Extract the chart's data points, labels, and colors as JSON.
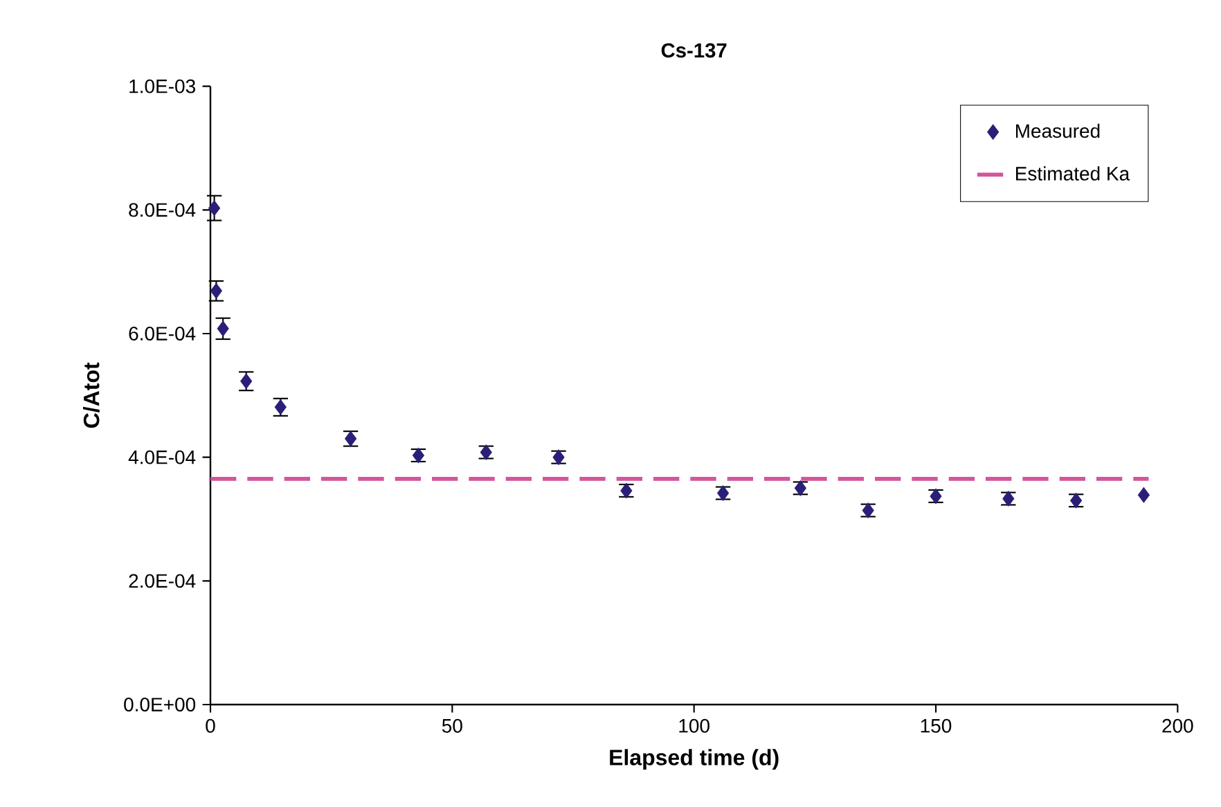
{
  "chart_data": {
    "type": "scatter",
    "title": "Cs-137",
    "xlabel": "Elapsed time (d)",
    "ylabel": "C/Atot",
    "xlim": [
      0,
      200
    ],
    "xticks": [
      0,
      50,
      100,
      150,
      200
    ],
    "ylim": [
      0,
      0.001
    ],
    "yticks": [
      {
        "value": 0,
        "label": "0.0E+00"
      },
      {
        "value": 0.0002,
        "label": "2.0E-04"
      },
      {
        "value": 0.0004,
        "label": "4.0E-04"
      },
      {
        "value": 0.0006,
        "label": "6.0E-04"
      },
      {
        "value": 0.0008,
        "label": "8.0E-04"
      },
      {
        "value": 0.001,
        "label": "1.0E-03"
      }
    ],
    "legend": "top right",
    "grid": false,
    "series": [
      {
        "name": "Measured",
        "marker": "diamond",
        "color": "#2a1f78",
        "x": [
          0.8,
          1.2,
          2.6,
          7.4,
          14.5,
          29,
          43,
          57,
          72,
          86,
          106,
          122,
          136,
          150,
          165,
          179,
          193
        ],
        "values": [
          0.000803,
          0.000669,
          0.000608,
          0.000523,
          0.000481,
          0.00043,
          0.000403,
          0.000408,
          0.0004,
          0.000346,
          0.000342,
          0.00035,
          0.000314,
          0.000337,
          0.000333,
          0.00033,
          0.000339
        ],
        "errors": [
          2e-05,
          1.6e-05,
          1.7e-05,
          1.5e-05,
          1.4e-05,
          1.2e-05,
          1e-05,
          1e-05,
          1e-05,
          1e-05,
          1e-05,
          1e-05,
          1e-05,
          1e-05,
          1e-05,
          1e-05,
          null
        ]
      },
      {
        "name": "Estimated Ka",
        "type": "line",
        "line_style": "dashed",
        "marker": "none",
        "color": "#d4559a",
        "x": [
          0,
          194
        ],
        "values": [
          0.000365,
          0.000365
        ]
      }
    ]
  }
}
